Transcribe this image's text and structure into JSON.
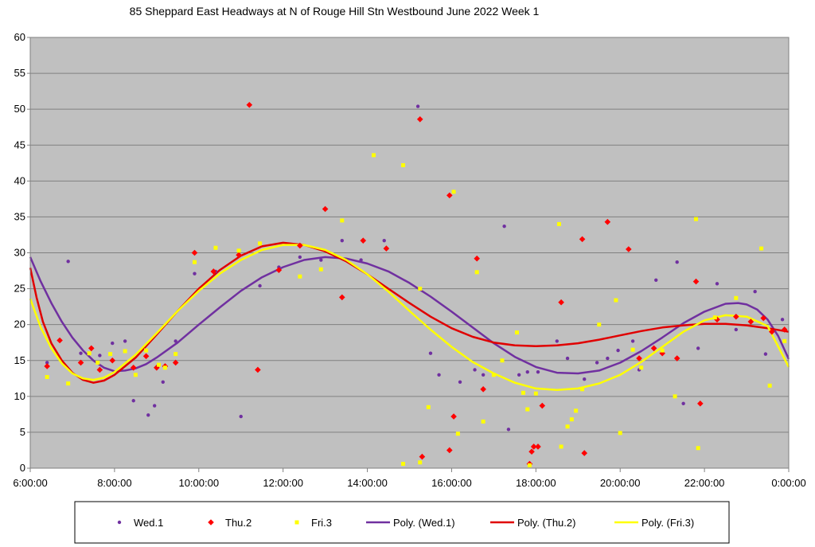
{
  "chart_data": {
    "type": "scatter",
    "title": "85 Sheppard East Headways at N of Rouge Hill Stn Westbound June 2022  Week 1",
    "xlabel": "",
    "ylabel": "",
    "xlim": [
      6,
      24
    ],
    "ylim": [
      0,
      60
    ],
    "y_ticks": [
      "0",
      "5",
      "10",
      "15",
      "20",
      "25",
      "30",
      "35",
      "40",
      "45",
      "50",
      "55",
      "60"
    ],
    "x_ticks": [
      "6:00:00",
      "8:00:00",
      "10:00:00",
      "12:00:00",
      "14:00:00",
      "16:00:00",
      "18:00:00",
      "20:00:00",
      "22:00:00",
      "0:00:00"
    ],
    "grid": true,
    "legend_position": "bottom",
    "colors": {
      "wed": "#7030A0",
      "thu": "#FF0000",
      "fri": "#FFFF00",
      "thu_line": "#E00000",
      "plot_bg": "#C0C0C0",
      "grid": "#808080"
    },
    "series": [
      {
        "name": "Wed.1",
        "marker": "circle",
        "points": [
          [
            6.4,
            14.7
          ],
          [
            6.9,
            28.8
          ],
          [
            7.2,
            16.0
          ],
          [
            7.65,
            15.7
          ],
          [
            7.95,
            17.4
          ],
          [
            8.25,
            17.7
          ],
          [
            8.45,
            9.4
          ],
          [
            8.8,
            7.4
          ],
          [
            8.95,
            8.7
          ],
          [
            9.15,
            12.0
          ],
          [
            9.45,
            17.7
          ],
          [
            9.9,
            27.1
          ],
          [
            10.4,
            27.4
          ],
          [
            11.0,
            7.2
          ],
          [
            11.45,
            25.4
          ],
          [
            11.9,
            28.0
          ],
          [
            12.4,
            29.4
          ],
          [
            12.9,
            29.0
          ],
          [
            13.4,
            31.7
          ],
          [
            13.85,
            29.0
          ],
          [
            14.4,
            31.7
          ],
          [
            15.2,
            50.4
          ],
          [
            15.5,
            16.0
          ],
          [
            15.7,
            13.0
          ],
          [
            16.2,
            12.0
          ],
          [
            16.55,
            13.7
          ],
          [
            16.75,
            13.0
          ],
          [
            17.25,
            33.7
          ],
          [
            17.35,
            5.4
          ],
          [
            17.6,
            13.0
          ],
          [
            17.8,
            13.4
          ],
          [
            18.05,
            13.4
          ],
          [
            18.5,
            17.7
          ],
          [
            18.75,
            15.3
          ],
          [
            19.15,
            12.4
          ],
          [
            19.45,
            14.7
          ],
          [
            19.7,
            15.3
          ],
          [
            19.95,
            16.4
          ],
          [
            20.3,
            17.7
          ],
          [
            20.45,
            13.7
          ],
          [
            20.85,
            26.2
          ],
          [
            21.35,
            28.7
          ],
          [
            21.5,
            9.0
          ],
          [
            21.85,
            16.7
          ],
          [
            22.3,
            25.7
          ],
          [
            22.75,
            19.3
          ],
          [
            23.2,
            24.6
          ],
          [
            23.45,
            15.9
          ],
          [
            23.85,
            20.7
          ]
        ]
      },
      {
        "name": "Thu.2",
        "marker": "diamond",
        "points": [
          [
            6.4,
            14.2
          ],
          [
            6.7,
            17.8
          ],
          [
            7.2,
            14.7
          ],
          [
            7.45,
            16.7
          ],
          [
            7.65,
            13.7
          ],
          [
            7.95,
            15.0
          ],
          [
            8.45,
            14.0
          ],
          [
            8.75,
            15.6
          ],
          [
            9.0,
            14.0
          ],
          [
            9.2,
            14.2
          ],
          [
            9.45,
            14.7
          ],
          [
            9.9,
            30.0
          ],
          [
            10.35,
            27.4
          ],
          [
            10.95,
            29.7
          ],
          [
            11.2,
            50.6
          ],
          [
            11.4,
            13.7
          ],
          [
            11.9,
            27.6
          ],
          [
            12.4,
            31.0
          ],
          [
            13.0,
            36.1
          ],
          [
            13.4,
            23.8
          ],
          [
            13.9,
            31.7
          ],
          [
            14.45,
            30.6
          ],
          [
            15.25,
            48.6
          ],
          [
            15.3,
            1.6
          ],
          [
            15.95,
            38.0
          ],
          [
            15.95,
            2.5
          ],
          [
            16.05,
            7.2
          ],
          [
            16.6,
            29.2
          ],
          [
            16.75,
            11.0
          ],
          [
            17.85,
            0.6
          ],
          [
            17.9,
            2.3
          ],
          [
            17.95,
            3.0
          ],
          [
            18.05,
            3.0
          ],
          [
            18.15,
            8.7
          ],
          [
            18.6,
            23.1
          ],
          [
            19.1,
            31.9
          ],
          [
            19.15,
            2.1
          ],
          [
            19.7,
            34.3
          ],
          [
            20.2,
            30.5
          ],
          [
            20.45,
            15.3
          ],
          [
            20.8,
            16.7
          ],
          [
            21.0,
            16.0
          ],
          [
            21.35,
            15.3
          ],
          [
            21.8,
            26.0
          ],
          [
            21.9,
            9.0
          ],
          [
            22.3,
            20.7
          ],
          [
            22.75,
            21.1
          ],
          [
            23.1,
            20.4
          ],
          [
            23.4,
            20.9
          ],
          [
            23.6,
            19.0
          ],
          [
            23.9,
            19.3
          ]
        ]
      },
      {
        "name": "Fri.3",
        "marker": "square",
        "points": [
          [
            6.4,
            12.7
          ],
          [
            6.9,
            11.8
          ],
          [
            7.4,
            16.0
          ],
          [
            7.6,
            14.7
          ],
          [
            7.9,
            15.9
          ],
          [
            8.25,
            16.3
          ],
          [
            8.5,
            13.0
          ],
          [
            8.75,
            16.4
          ],
          [
            9.05,
            14.4
          ],
          [
            9.2,
            14.0
          ],
          [
            9.45,
            15.9
          ],
          [
            9.9,
            28.7
          ],
          [
            10.4,
            30.7
          ],
          [
            10.95,
            30.3
          ],
          [
            11.45,
            31.3
          ],
          [
            12.4,
            26.7
          ],
          [
            12.9,
            27.7
          ],
          [
            13.4,
            34.5
          ],
          [
            14.15,
            43.6
          ],
          [
            14.85,
            42.2
          ],
          [
            14.85,
            0.6
          ],
          [
            15.25,
            25.0
          ],
          [
            15.25,
            0.8
          ],
          [
            15.45,
            8.5
          ],
          [
            16.05,
            38.5
          ],
          [
            16.15,
            4.8
          ],
          [
            16.6,
            27.3
          ],
          [
            16.75,
            6.5
          ],
          [
            17.0,
            13.0
          ],
          [
            17.2,
            15.0
          ],
          [
            17.55,
            18.9
          ],
          [
            17.7,
            10.5
          ],
          [
            17.8,
            8.2
          ],
          [
            17.85,
            0.4
          ],
          [
            18.0,
            10.4
          ],
          [
            18.55,
            34.0
          ],
          [
            18.6,
            3.0
          ],
          [
            18.75,
            5.8
          ],
          [
            18.85,
            6.8
          ],
          [
            18.95,
            8.0
          ],
          [
            19.1,
            11.0
          ],
          [
            19.5,
            20.0
          ],
          [
            19.9,
            23.4
          ],
          [
            20.0,
            4.9
          ],
          [
            20.3,
            16.5
          ],
          [
            20.5,
            14.0
          ],
          [
            21.0,
            16.4
          ],
          [
            21.3,
            10.0
          ],
          [
            21.8,
            34.7
          ],
          [
            21.85,
            2.8
          ],
          [
            22.25,
            21.0
          ],
          [
            22.75,
            23.7
          ],
          [
            23.35,
            30.6
          ],
          [
            23.55,
            11.5
          ],
          [
            23.9,
            17.7
          ]
        ]
      }
    ],
    "trendlines": [
      {
        "name": "Poly. (Wed.1)",
        "points": [
          [
            6.0,
            29.4
          ],
          [
            6.25,
            26.0
          ],
          [
            6.5,
            23.0
          ],
          [
            6.75,
            20.4
          ],
          [
            7.0,
            18.2
          ],
          [
            7.25,
            16.4
          ],
          [
            7.5,
            15.0
          ],
          [
            7.75,
            14.0
          ],
          [
            8.0,
            13.5
          ],
          [
            8.25,
            13.6
          ],
          [
            8.5,
            13.9
          ],
          [
            8.75,
            14.5
          ],
          [
            9.0,
            15.4
          ],
          [
            9.5,
            17.5
          ],
          [
            10.0,
            20.0
          ],
          [
            10.5,
            22.4
          ],
          [
            11.0,
            24.7
          ],
          [
            11.5,
            26.6
          ],
          [
            12.0,
            28.0
          ],
          [
            12.5,
            29.0
          ],
          [
            13.0,
            29.4
          ],
          [
            13.5,
            29.2
          ],
          [
            14.0,
            28.5
          ],
          [
            14.5,
            27.4
          ],
          [
            15.0,
            25.8
          ],
          [
            15.5,
            23.9
          ],
          [
            16.0,
            21.8
          ],
          [
            16.5,
            19.6
          ],
          [
            17.0,
            17.4
          ],
          [
            17.5,
            15.5
          ],
          [
            18.0,
            14.1
          ],
          [
            18.5,
            13.3
          ],
          [
            19.0,
            13.2
          ],
          [
            19.5,
            13.6
          ],
          [
            20.0,
            14.7
          ],
          [
            20.5,
            16.3
          ],
          [
            21.0,
            18.2
          ],
          [
            21.5,
            20.2
          ],
          [
            22.0,
            21.8
          ],
          [
            22.5,
            22.9
          ],
          [
            22.8,
            23.0
          ],
          [
            23.0,
            22.8
          ],
          [
            23.25,
            22.1
          ],
          [
            23.5,
            20.7
          ],
          [
            23.75,
            18.4
          ],
          [
            24.0,
            15.2
          ]
        ]
      },
      {
        "name": "Poly. (Thu.2)",
        "points": [
          [
            6.0,
            27.9
          ],
          [
            6.15,
            23.8
          ],
          [
            6.3,
            20.4
          ],
          [
            6.5,
            17.4
          ],
          [
            6.75,
            15.0
          ],
          [
            7.0,
            13.3
          ],
          [
            7.25,
            12.3
          ],
          [
            7.5,
            11.9
          ],
          [
            7.75,
            12.2
          ],
          [
            8.0,
            13.0
          ],
          [
            8.5,
            15.4
          ],
          [
            9.0,
            18.6
          ],
          [
            9.5,
            21.9
          ],
          [
            10.0,
            25.0
          ],
          [
            10.5,
            27.6
          ],
          [
            11.0,
            29.6
          ],
          [
            11.5,
            30.9
          ],
          [
            12.0,
            31.4
          ],
          [
            12.5,
            31.1
          ],
          [
            13.0,
            30.2
          ],
          [
            13.5,
            28.8
          ],
          [
            14.0,
            27.0
          ],
          [
            14.5,
            25.0
          ],
          [
            15.0,
            23.0
          ],
          [
            15.5,
            21.1
          ],
          [
            16.0,
            19.5
          ],
          [
            16.5,
            18.3
          ],
          [
            17.0,
            17.5
          ],
          [
            17.5,
            17.1
          ],
          [
            18.0,
            17.0
          ],
          [
            18.5,
            17.1
          ],
          [
            19.0,
            17.4
          ],
          [
            19.5,
            17.9
          ],
          [
            20.0,
            18.5
          ],
          [
            20.5,
            19.1
          ],
          [
            21.0,
            19.6
          ],
          [
            21.5,
            19.9
          ],
          [
            22.0,
            20.1
          ],
          [
            22.5,
            20.1
          ],
          [
            23.0,
            19.9
          ],
          [
            23.5,
            19.5
          ],
          [
            24.0,
            19.0
          ]
        ]
      },
      {
        "name": "Poly. (Fri.3)",
        "points": [
          [
            6.0,
            23.6
          ],
          [
            6.25,
            19.6
          ],
          [
            6.5,
            16.7
          ],
          [
            6.75,
            14.6
          ],
          [
            7.0,
            13.2
          ],
          [
            7.25,
            12.5
          ],
          [
            7.5,
            12.3
          ],
          [
            7.75,
            12.6
          ],
          [
            8.0,
            13.4
          ],
          [
            8.5,
            15.8
          ],
          [
            9.0,
            18.8
          ],
          [
            9.5,
            21.9
          ],
          [
            10.0,
            24.7
          ],
          [
            10.5,
            27.1
          ],
          [
            11.0,
            29.0
          ],
          [
            11.5,
            30.4
          ],
          [
            12.0,
            31.1
          ],
          [
            12.5,
            31.1
          ],
          [
            13.0,
            30.4
          ],
          [
            13.5,
            29.0
          ],
          [
            14.0,
            27.0
          ],
          [
            14.5,
            24.6
          ],
          [
            15.0,
            21.9
          ],
          [
            15.5,
            19.3
          ],
          [
            16.0,
            16.9
          ],
          [
            16.5,
            14.8
          ],
          [
            17.0,
            13.2
          ],
          [
            17.5,
            11.9
          ],
          [
            18.0,
            11.1
          ],
          [
            18.5,
            10.9
          ],
          [
            19.0,
            11.1
          ],
          [
            19.5,
            11.8
          ],
          [
            20.0,
            13.0
          ],
          [
            20.5,
            14.8
          ],
          [
            21.0,
            16.9
          ],
          [
            21.5,
            19.0
          ],
          [
            22.0,
            20.6
          ],
          [
            22.5,
            21.3
          ],
          [
            23.0,
            21.1
          ],
          [
            23.5,
            19.8
          ],
          [
            24.0,
            14.1
          ]
        ]
      }
    ]
  }
}
